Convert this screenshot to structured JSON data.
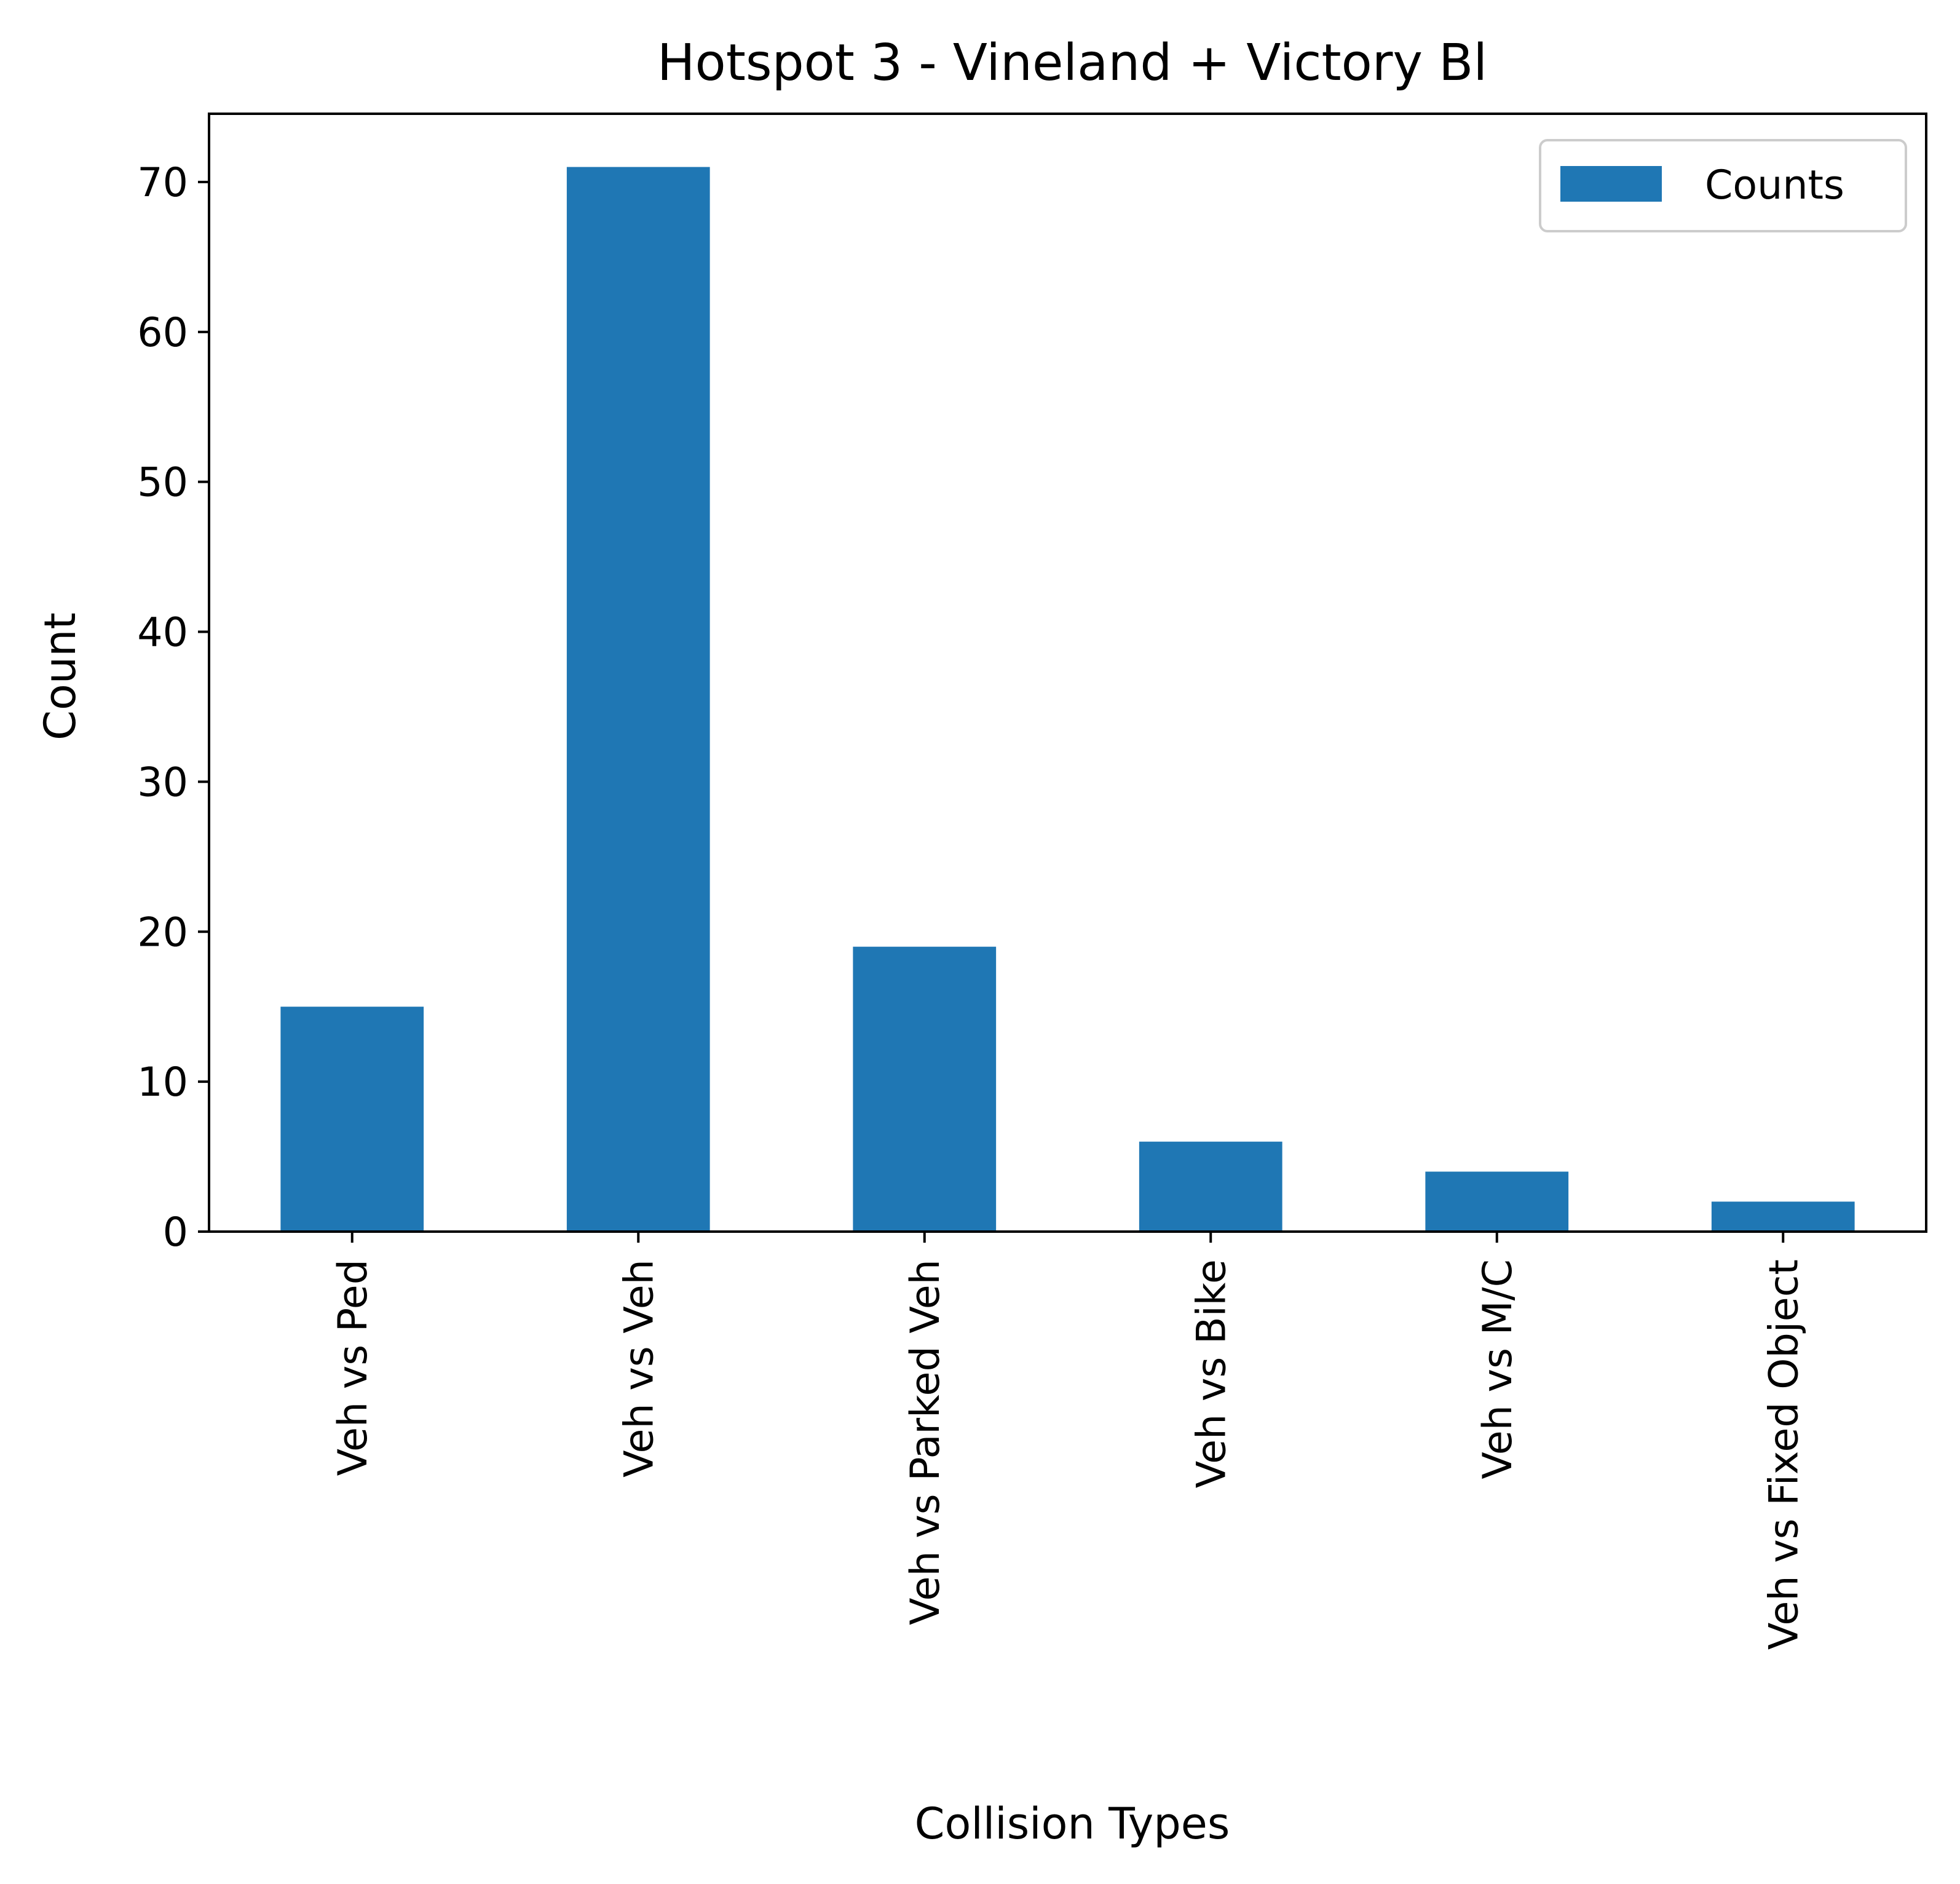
{
  "chart_data": {
    "type": "bar",
    "title": "Hotspot 3 - Vineland + Victory Bl",
    "xlabel": "Collision Types",
    "ylabel": "Count",
    "categories": [
      "Veh vs Ped",
      "Veh vs Veh",
      "Veh vs Parked Veh",
      "Veh vs Bike",
      "Veh vs M/C",
      "Veh vs Fixed Object"
    ],
    "series": [
      {
        "name": "Counts",
        "values": [
          15,
          71,
          19,
          6,
          4,
          2
        ]
      }
    ],
    "ylim": [
      0,
      74.55
    ],
    "yticks": [
      0,
      10,
      20,
      30,
      40,
      50,
      60,
      70
    ],
    "grid": false,
    "legend_position": "top-right",
    "colors": {
      "bar": "#1f77b4",
      "axis": "#000000",
      "background": "#ffffff"
    }
  }
}
